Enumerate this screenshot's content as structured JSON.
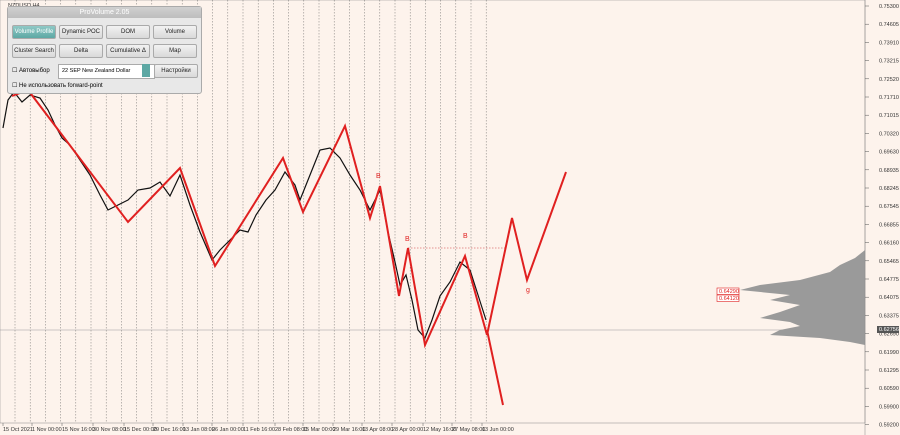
{
  "symbol": "NZDUSD,H4",
  "panel": {
    "title": "ProVolume 2.05",
    "buttons": [
      "Volume Profile",
      "Dynamic POC",
      "DOM",
      "Volume",
      "Cluster Search",
      "Delta",
      "Cumulative Δ",
      "Map"
    ],
    "auto": "Автовыбор",
    "instrument": "22 SEP New Zealand Dollar",
    "settings": "Настройки",
    "forward": "Не использовать forward-point"
  },
  "price_axis": [
    "0.75300",
    "0.74605",
    "0.73910",
    "0.73215",
    "0.72520",
    "0.71710",
    "0.71015",
    "0.70320",
    "0.69630",
    "0.68935",
    "0.68245",
    "0.67545",
    "0.66855",
    "0.66160",
    "0.65465",
    "0.64775",
    "0.64075",
    "0.63375",
    "0.62690",
    "0.61990",
    "0.61295",
    "0.60590",
    "0.59900",
    "0.59200"
  ],
  "current_price": "0.62756",
  "level_tags": [
    "0.64290",
    "0.64120"
  ],
  "time_axis": [
    "15 Oct 2021",
    "1 Nov 00:00",
    "15 Nov 16:00",
    "30 Nov 08:00",
    "15 Dec 00:00",
    "29 Dec 16:00",
    "13 Jan 08:00",
    "26 Jan 00:00",
    "11 Feb 16:00",
    "28 Feb 08:00",
    "15 Mar 00:00",
    "29 Mar 16:00",
    "13 Apr 08:00",
    "28 Apr 00:00",
    "12 May 16:00",
    "27 May 08:00",
    "13 Jun 00:00"
  ],
  "annotations": [
    "B",
    "B",
    "B",
    "g"
  ]
}
